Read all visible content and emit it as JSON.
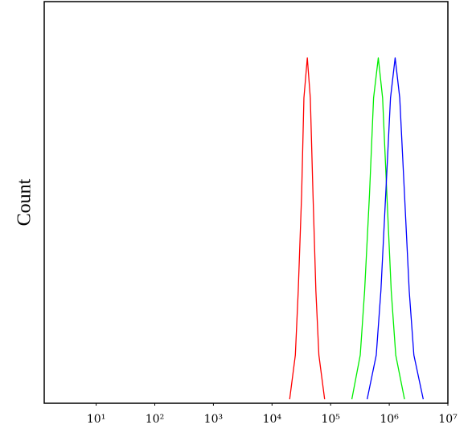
{
  "chart_data": {
    "type": "line",
    "y_label": "Count",
    "log_x": true,
    "xlim": [
      1.3,
      10000000
    ],
    "xticks": [
      {
        "value": 10,
        "label": "10¹"
      },
      {
        "value": 100,
        "label": "10²"
      },
      {
        "value": 1000,
        "label": "10³"
      },
      {
        "value": 10000,
        "label": "10⁴"
      },
      {
        "value": 100000,
        "label": "10⁵"
      },
      {
        "value": 1000000,
        "label": "10⁶"
      },
      {
        "value": 10000000,
        "label": "10⁷"
      }
    ],
    "ylim": [
      0,
      100
    ],
    "series": [
      {
        "color": "#ff0000",
        "x": [
          20000,
          25000,
          28000,
          32000,
          35000,
          40000,
          45000,
          50000,
          56000,
          63000,
          79000
        ],
        "values": [
          1,
          12,
          28,
          52,
          76,
          86,
          76,
          52,
          28,
          12,
          1
        ]
      },
      {
        "color": "#00ee00",
        "x": [
          230000,
          320000,
          380000,
          460000,
          540000,
          650000,
          770000,
          910000,
          1080000,
          1290000,
          1820000
        ],
        "values": [
          1,
          12,
          28,
          52,
          76,
          86,
          76,
          52,
          28,
          12,
          1
        ]
      },
      {
        "color": "#0000ff",
        "x": [
          420000,
          600000,
          720000,
          870000,
          1050000,
          1260000,
          1510000,
          1820000,
          2190000,
          2630000,
          3800000
        ],
        "values": [
          1,
          12,
          28,
          52,
          76,
          86,
          76,
          52,
          28,
          12,
          1
        ]
      }
    ]
  }
}
